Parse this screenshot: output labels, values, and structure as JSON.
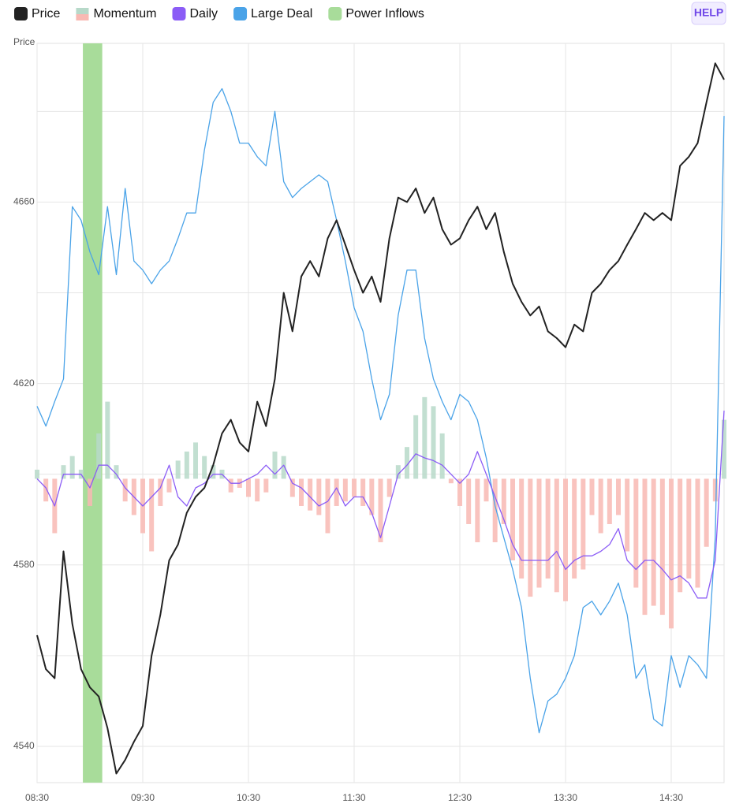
{
  "chart_data": {
    "type": "line",
    "y_label": "Price",
    "button": "HELP",
    "x": [
      "08:30",
      "08:35",
      "08:40",
      "08:45",
      "08:50",
      "08:55",
      "09:00",
      "09:05",
      "09:10",
      "09:15",
      "09:20",
      "09:25",
      "09:30",
      "09:35",
      "09:40",
      "09:45",
      "09:50",
      "09:55",
      "10:00",
      "10:05",
      "10:10",
      "10:15",
      "10:20",
      "10:25",
      "10:30",
      "10:35",
      "10:40",
      "10:45",
      "10:50",
      "10:55",
      "11:00",
      "11:05",
      "11:10",
      "11:15",
      "11:20",
      "11:25",
      "11:30",
      "11:35",
      "11:40",
      "11:45",
      "11:50",
      "11:55",
      "12:00",
      "12:05",
      "12:10",
      "12:15",
      "12:20",
      "12:25",
      "12:30",
      "12:35",
      "12:40",
      "12:45",
      "12:50",
      "12:55",
      "13:00",
      "13:05",
      "13:10",
      "13:15",
      "13:20",
      "13:25",
      "13:30",
      "13:35",
      "13:40",
      "13:45",
      "13:50",
      "13:55",
      "14:00",
      "14:05",
      "14:10",
      "14:15",
      "14:20",
      "14:25",
      "14:30",
      "14:35",
      "14:40",
      "14:45",
      "14:50",
      "14:55",
      "15:00"
    ],
    "xlim": [
      "08:30",
      "15:00"
    ],
    "xticks": [
      "08:30",
      "09:30",
      "10:30",
      "11:30",
      "12:30",
      "13:30",
      "14:30"
    ],
    "ylim": [
      4532,
      4695
    ],
    "yticks": [
      4540,
      4580,
      4620,
      4660
    ],
    "yminor": [
      4560,
      4600,
      4640,
      4680
    ],
    "grid": true,
    "series": [
      {
        "name": "Price",
        "kind": "line",
        "color": "#222222",
        "values": [
          4564.5,
          4557,
          4555,
          4583,
          4567,
          4557,
          4553,
          4551,
          4544,
          4534,
          4537,
          4541,
          4544.5,
          4560,
          4569,
          4581,
          4584.5,
          4591.5,
          4595,
          4597,
          4602,
          4609,
          4612,
          4607,
          4605,
          4616,
          4610.6,
          4621,
          4640,
          4631.5,
          4643.6,
          4647,
          4643.6,
          4652,
          4656,
          4650.6,
          4645,
          4640,
          4643.6,
          4638,
          4652,
          4661,
          4660,
          4663,
          4657.6,
          4661,
          4654,
          4650.6,
          4652,
          4656,
          4659,
          4654,
          4657.6,
          4649,
          4642,
          4638,
          4635,
          4637,
          4631.5,
          4630,
          4628,
          4633,
          4631.5,
          4640,
          4642,
          4645,
          4647,
          4650.6,
          4654,
          4657.6,
          4656,
          4657.6,
          4656,
          4668,
          4670,
          4673,
          4682,
          4690.6,
          4687
        ]
      },
      {
        "name": "Momentum",
        "kind": "bar",
        "color": "#b7d9c9",
        "color_down": "#f8b9b3",
        "baseline": 4599,
        "values": [
          2,
          -5,
          -12,
          3,
          5,
          2,
          -6,
          10,
          17,
          3,
          -5,
          -8,
          -12,
          -16,
          -6,
          -3,
          4,
          6,
          8,
          5,
          3,
          2,
          -3,
          -2,
          -4,
          -5,
          -3,
          6,
          5,
          -4,
          -6,
          -7,
          -8,
          -12,
          -6,
          -5,
          -4,
          -6,
          -8,
          -14,
          -4,
          3,
          7,
          14,
          18,
          16,
          10,
          -1,
          -6,
          -10,
          -14,
          -5,
          -14,
          -10,
          -18,
          -22,
          -26,
          -24,
          -22,
          -25,
          -27,
          -22,
          -20,
          -8,
          -12,
          -10,
          -8,
          -16,
          -24,
          -30,
          -28,
          -30,
          -33,
          -25,
          -22,
          -24,
          -15,
          -5,
          13
        ]
      },
      {
        "name": "Daily",
        "kind": "line",
        "color": "#8b5cf6",
        "values": [
          4599,
          4597,
          4593,
          4600,
          4600,
          4600,
          4597,
          4602,
          4602,
          4600,
          4597,
          4595,
          4593,
          4595,
          4597,
          4602,
          4595,
          4593,
          4597,
          4598,
          4600,
          4600,
          4598,
          4598,
          4599,
          4600,
          4602,
          4600,
          4602,
          4598,
          4597,
          4595,
          4593,
          4594,
          4597,
          4593,
          4595,
          4595,
          4591.5,
          4586,
          4593,
          4600,
          4602,
          4604.5,
          4603.6,
          4603,
          4602,
          4600,
          4598,
          4600,
          4605,
          4600,
          4595,
          4590,
          4584.5,
          4581,
          4581,
          4581,
          4581,
          4583,
          4579,
          4581,
          4582,
          4582,
          4583,
          4584.5,
          4588,
          4581,
          4579,
          4581,
          4581,
          4579,
          4576.7,
          4577.6,
          4576,
          4572.7,
          4572.7,
          4581,
          4614
        ]
      },
      {
        "name": "Large Deal",
        "kind": "line",
        "color": "#4aa3e8",
        "values": [
          4615,
          4610.6,
          4616,
          4621,
          4659,
          4656,
          4649,
          4644,
          4659,
          4644,
          4663,
          4647,
          4645,
          4642,
          4645,
          4647,
          4652,
          4657.6,
          4657.6,
          4671.5,
          4682,
          4685,
          4680,
          4673,
          4673,
          4670,
          4668,
          4680,
          4664.5,
          4661,
          4663,
          4664.5,
          4666,
          4664.5,
          4656,
          4647,
          4636.7,
          4631.5,
          4621,
          4612,
          4617.6,
          4635,
          4645,
          4645,
          4630,
          4621,
          4616,
          4612,
          4617.6,
          4616,
          4612,
          4603.6,
          4593,
          4586,
          4579,
          4570.6,
          4555,
          4543,
          4550,
          4551.5,
          4555,
          4560,
          4570.6,
          4572,
          4569,
          4572,
          4576,
          4569,
          4555,
          4558,
          4546,
          4544.5,
          4560,
          4553,
          4560,
          4558,
          4555,
          4586,
          4679
        ]
      }
    ],
    "bands": [
      {
        "name": "Power Inflows",
        "color": "#a8dc9a",
        "start": "08:56",
        "end": "09:07"
      }
    ]
  }
}
